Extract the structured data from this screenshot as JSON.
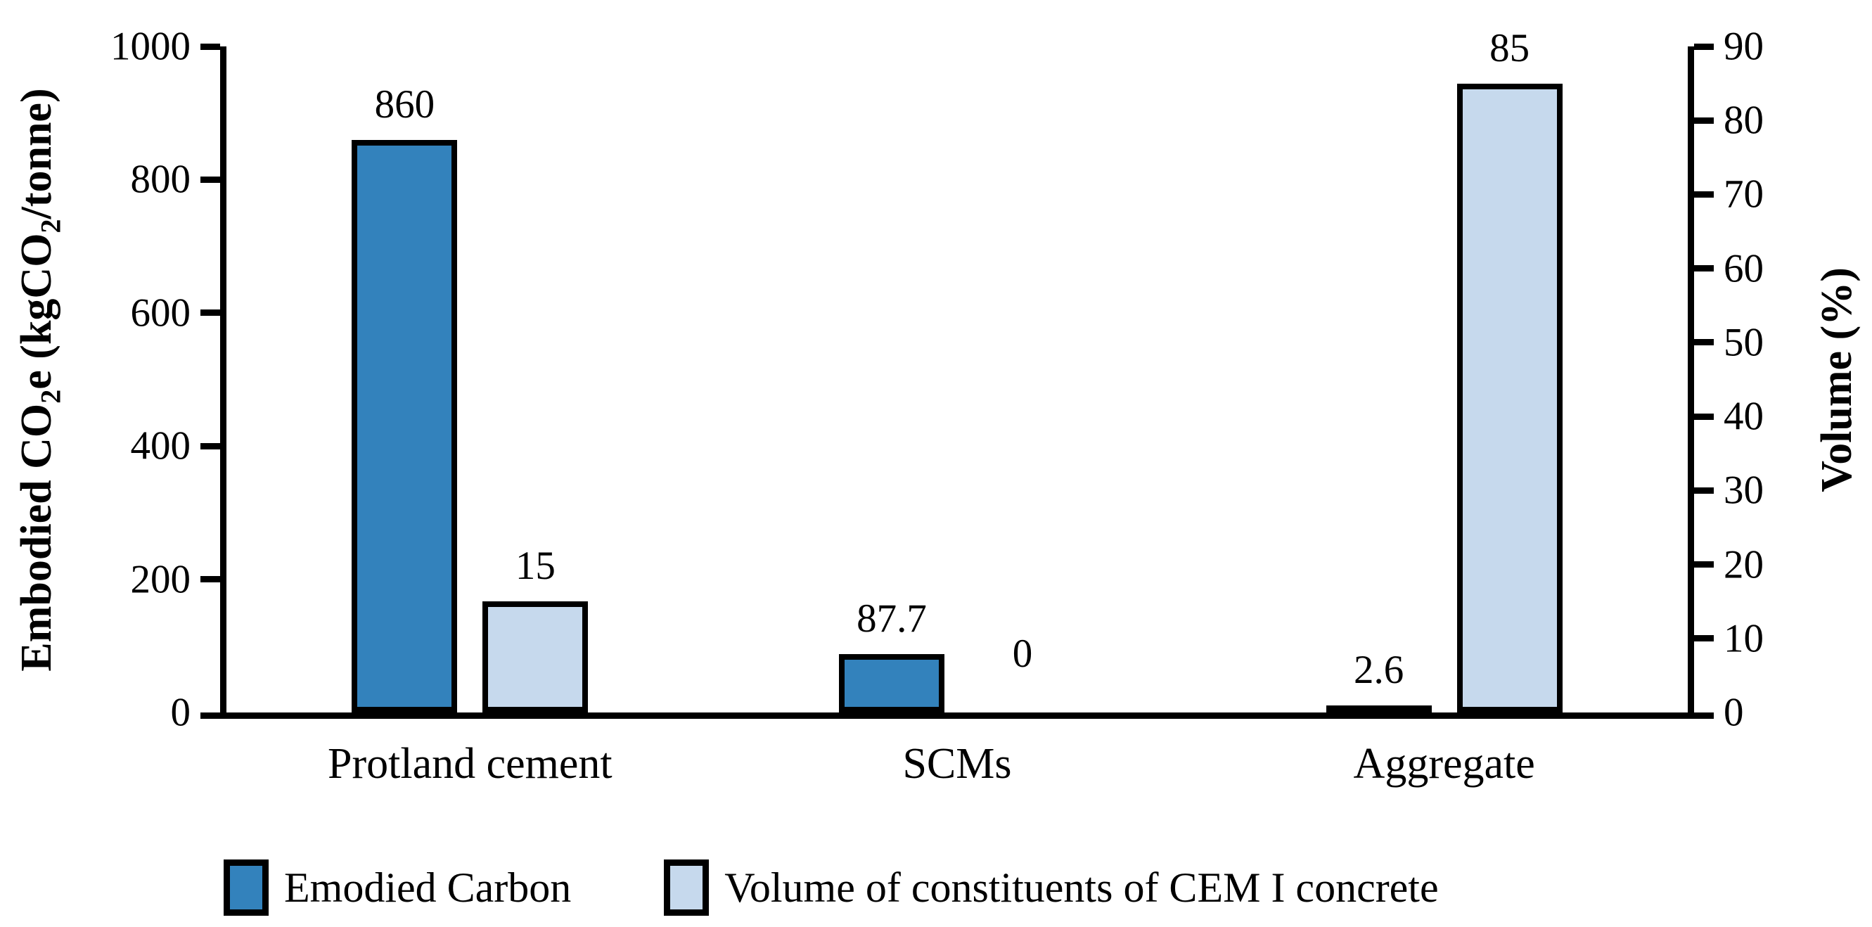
{
  "chart_data": {
    "type": "bar",
    "categories": [
      "Protland cement",
      "SCMs",
      "Aggregate"
    ],
    "series": [
      {
        "name": "Emodied Carbon",
        "axis": "left",
        "color": "#3382BC",
        "values": [
          860,
          87.7,
          2.6
        ]
      },
      {
        "name": "Volume of constituents of CEM I concrete",
        "axis": "right",
        "color": "#C6D9ED",
        "values": [
          15,
          0,
          85
        ]
      }
    ],
    "left_axis": {
      "title": "Embodied CO2e (kgCO2/tonne)",
      "title_parts": [
        {
          "text": "Embodied CO"
        },
        {
          "sub": "2"
        },
        {
          "text": "e (kgCO"
        },
        {
          "sub": "2"
        },
        {
          "text": "/tonne)"
        }
      ],
      "min": 0,
      "max": 1000,
      "step": 200,
      "ticks": [
        "0",
        "200",
        "400",
        "600",
        "800",
        "1000"
      ]
    },
    "right_axis": {
      "title": "Volume (%)",
      "min": 0,
      "max": 90,
      "step": 10,
      "ticks": [
        "0",
        "10",
        "20",
        "30",
        "40",
        "50",
        "60",
        "70",
        "80",
        "90"
      ]
    },
    "data_labels": {
      "embodied_carbon": [
        "860",
        "87.7",
        "2.6"
      ],
      "volume": [
        "15",
        "0",
        "85"
      ]
    },
    "legend_position": "bottom",
    "grid": false,
    "bar_outline_color": "#000000",
    "background_color": "#FFFFFF"
  }
}
